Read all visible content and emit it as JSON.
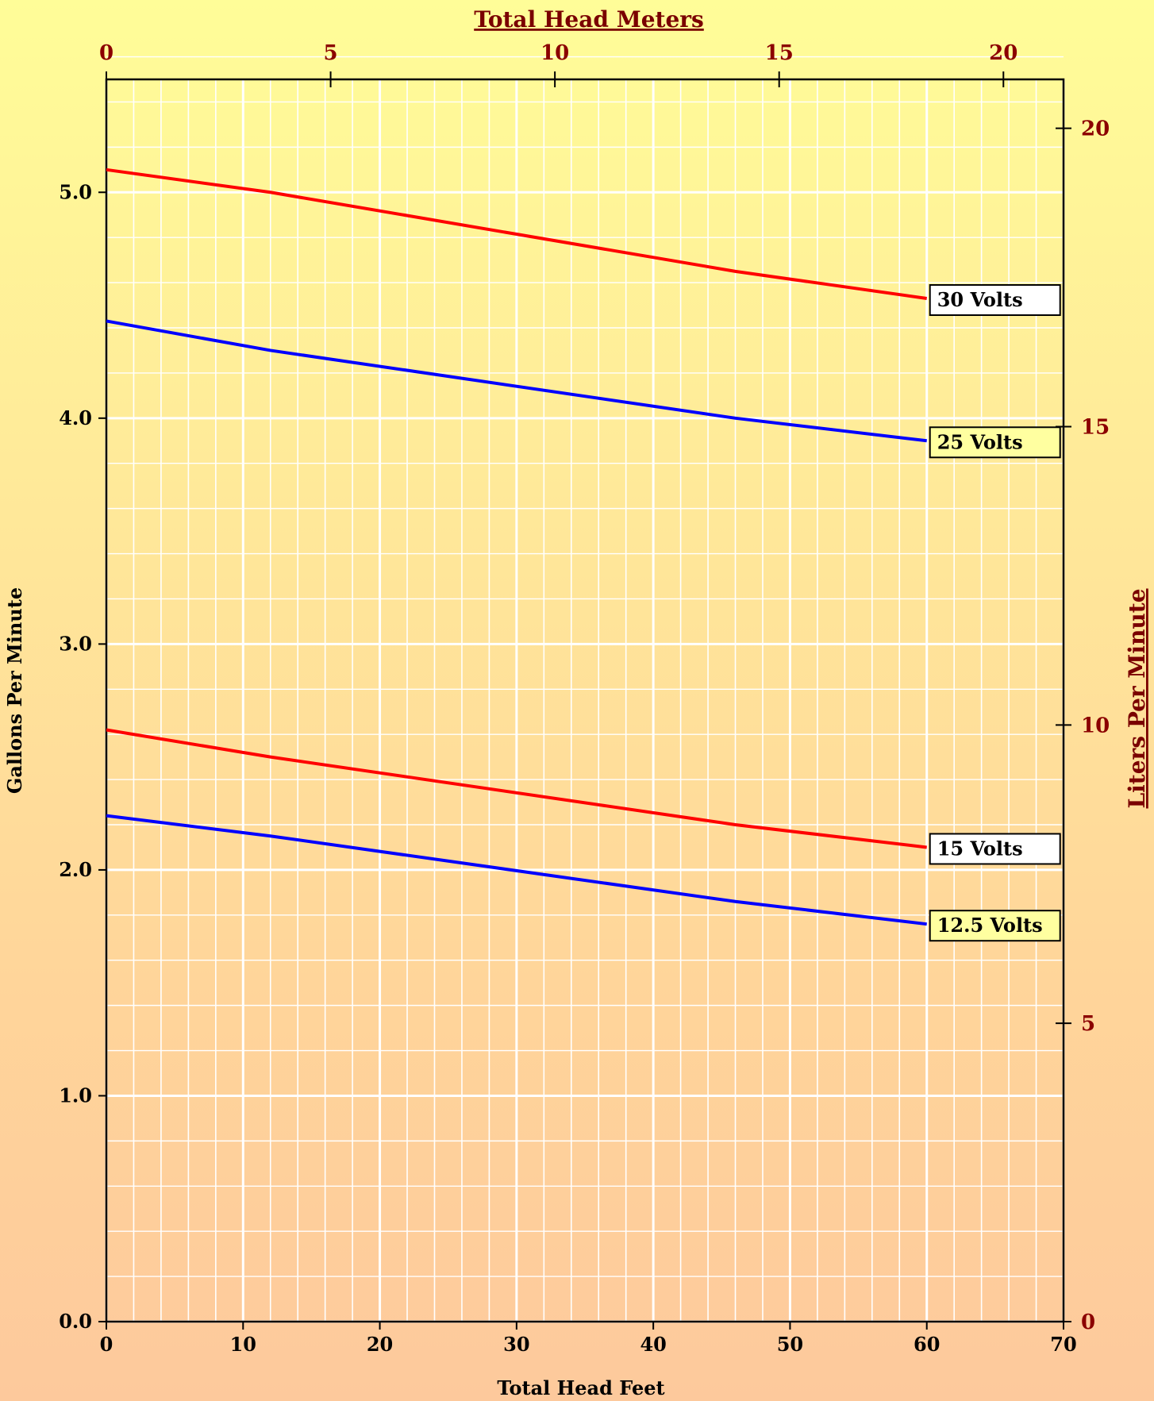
{
  "chart_data": {
    "type": "line",
    "xlabel": "Total Head Feet",
    "ylabel": "Gallons Per Minute",
    "x2label": "Total Head Meters",
    "y2label": "Liters Per Minute",
    "xlim": [
      0,
      70
    ],
    "ylim": [
      0,
      5.5
    ],
    "x2lim": [
      0,
      21.34
    ],
    "y2lim": [
      0,
      20.82
    ],
    "x_ticks": [
      0,
      10,
      20,
      30,
      40,
      50,
      60,
      70
    ],
    "y_ticks": [
      "0.0",
      "1.0",
      "2.0",
      "3.0",
      "4.0",
      "5.0"
    ],
    "x2_ticks": [
      0,
      5,
      10,
      15,
      20
    ],
    "y2_ticks": [
      0,
      5,
      10,
      15,
      20
    ],
    "grid": true,
    "series": [
      {
        "name": "30 Volts",
        "color": "#ff0000",
        "label_bg": "#ffffff",
        "x": [
          0,
          12,
          46,
          60
        ],
        "y": [
          5.1,
          5.0,
          4.65,
          4.53
        ]
      },
      {
        "name": "25 Volts",
        "color": "#0000ff",
        "label_bg": "#ffffa0",
        "x": [
          0,
          12,
          46,
          60
        ],
        "y": [
          4.43,
          4.3,
          4.0,
          3.9
        ]
      },
      {
        "name": "15 Volts",
        "color": "#ff0000",
        "label_bg": "#ffffff",
        "x": [
          0,
          12,
          46,
          60
        ],
        "y": [
          2.62,
          2.5,
          2.2,
          2.1
        ]
      },
      {
        "name": "12.5 Volts",
        "color": "#0000ff",
        "label_bg": "#ffffa0",
        "x": [
          0,
          12,
          46,
          60
        ],
        "y": [
          2.24,
          2.15,
          1.86,
          1.76
        ]
      }
    ]
  }
}
